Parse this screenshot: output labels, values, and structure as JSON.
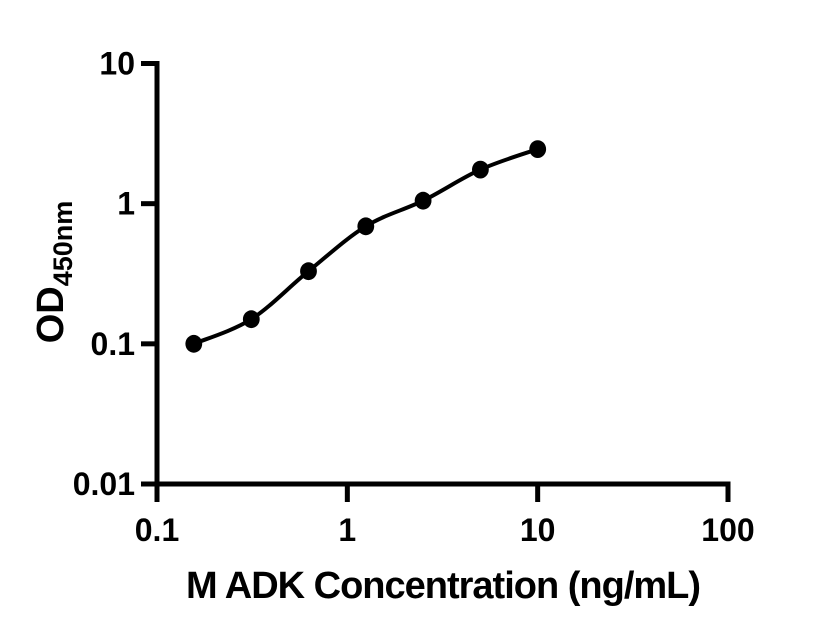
{
  "chart_data": {
    "type": "scatter",
    "title": "",
    "xlabel": "M ADK Concentration (ng/mL)",
    "ylabel": "OD",
    "ylabel_sub": "450nm",
    "x_scale": "log",
    "y_scale": "log",
    "xlim": [
      0.1,
      100
    ],
    "ylim": [
      0.01,
      10
    ],
    "grid": false,
    "legend": "none",
    "background_color": "#ffffff",
    "axis_color": "#000000",
    "marker_color": "#000000",
    "line_color": "#000000",
    "x_ticks": [
      {
        "value": 0.1,
        "label": "0.1"
      },
      {
        "value": 1,
        "label": "1"
      },
      {
        "value": 10,
        "label": "10"
      },
      {
        "value": 100,
        "label": "100"
      }
    ],
    "y_ticks": [
      {
        "value": 0.01,
        "label": "0.01"
      },
      {
        "value": 0.1,
        "label": "0.1"
      },
      {
        "value": 1,
        "label": "1"
      },
      {
        "value": 10,
        "label": "10"
      }
    ],
    "series": [
      {
        "curve": "smooth-fit",
        "points": [
          {
            "x": 0.156,
            "y": 0.1
          },
          {
            "x": 0.313,
            "y": 0.15
          },
          {
            "x": 0.625,
            "y": 0.33
          },
          {
            "x": 1.25,
            "y": 0.69
          },
          {
            "x": 2.5,
            "y": 1.05
          },
          {
            "x": 5,
            "y": 1.75
          },
          {
            "x": 10,
            "y": 2.45
          }
        ]
      }
    ]
  }
}
